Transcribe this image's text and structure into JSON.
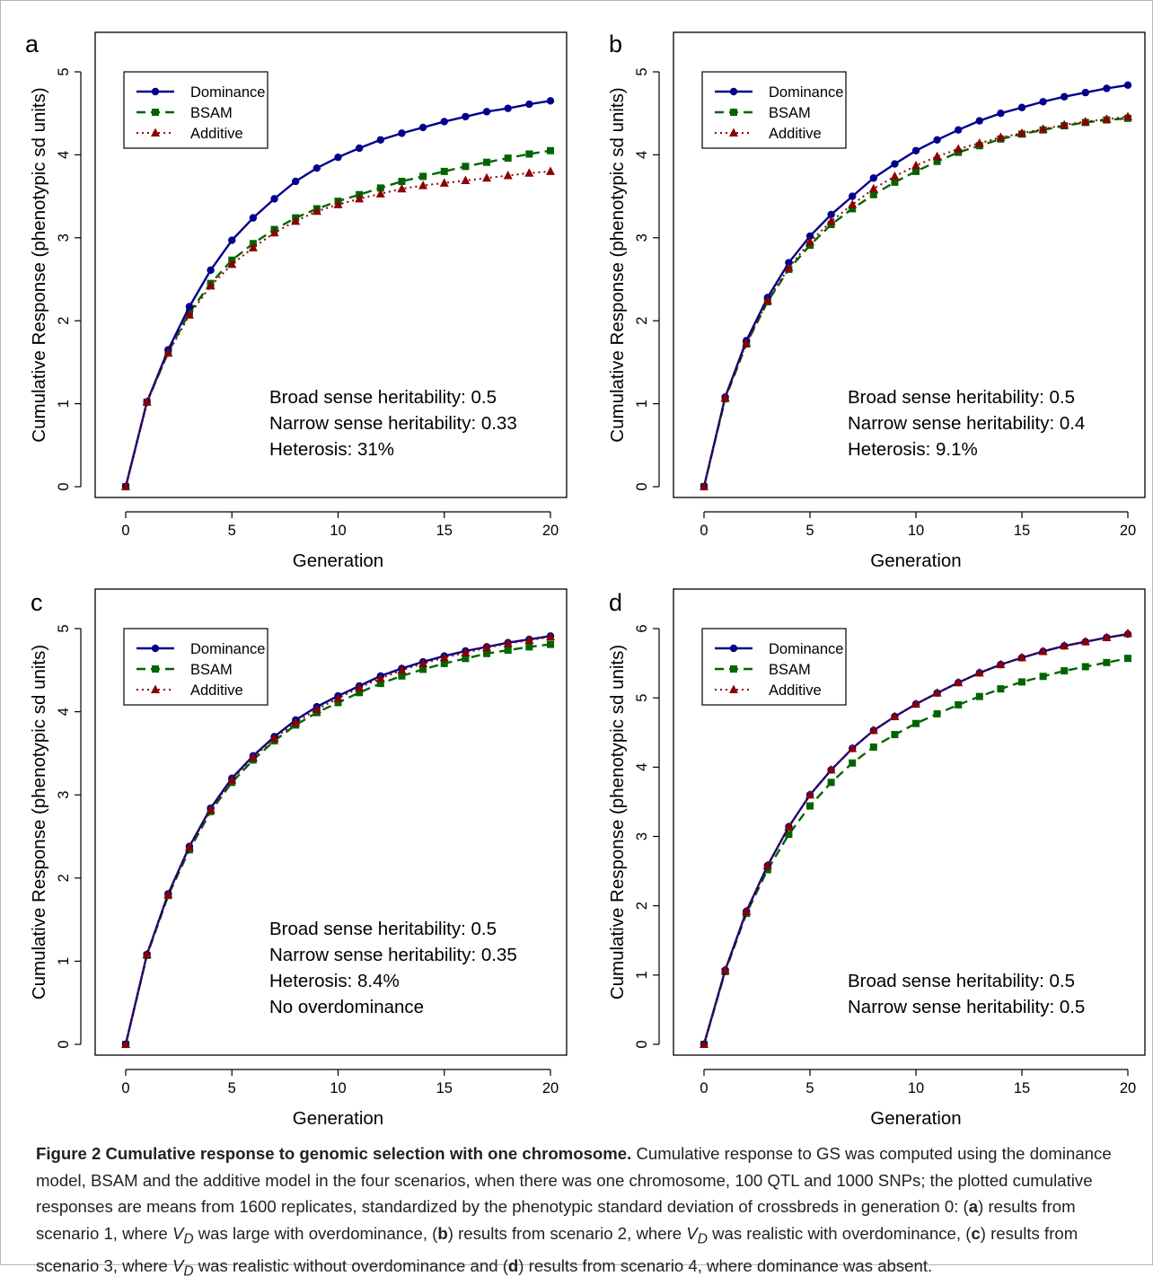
{
  "shared": {
    "series_names": [
      "Dominance",
      "BSAM",
      "Additive"
    ],
    "colors": {
      "Dominance": "#00008b",
      "BSAM": "#006400",
      "Additive": "#8b0000"
    },
    "xlabel": "Generation",
    "ylabel": "Cumulative Response (phenotypic sd units)"
  },
  "chart_data": [
    {
      "panel": "a",
      "type": "line",
      "xlabel": "Generation",
      "ylabel": "Cumulative Response (phenotypic sd units)",
      "xlim": [
        0,
        20
      ],
      "ylim": [
        0,
        5
      ],
      "xticks": [
        0,
        5,
        10,
        15,
        20
      ],
      "yticks": [
        0,
        1,
        2,
        3,
        4,
        5
      ],
      "legend": "top-left",
      "x": [
        0,
        1,
        2,
        3,
        4,
        5,
        6,
        7,
        8,
        9,
        10,
        11,
        12,
        13,
        14,
        15,
        16,
        17,
        18,
        19,
        20
      ],
      "series": [
        {
          "name": "Dominance",
          "values": [
            0,
            1.02,
            1.65,
            2.17,
            2.61,
            2.97,
            3.24,
            3.47,
            3.68,
            3.84,
            3.97,
            4.08,
            4.18,
            4.26,
            4.33,
            4.4,
            4.46,
            4.52,
            4.56,
            4.61,
            4.65
          ]
        },
        {
          "name": "BSAM",
          "values": [
            0,
            1.02,
            1.62,
            2.1,
            2.45,
            2.73,
            2.93,
            3.1,
            3.24,
            3.35,
            3.44,
            3.52,
            3.6,
            3.68,
            3.74,
            3.8,
            3.86,
            3.91,
            3.96,
            4.01,
            4.05
          ]
        },
        {
          "name": "Additive",
          "values": [
            0,
            1.02,
            1.61,
            2.07,
            2.42,
            2.68,
            2.88,
            3.06,
            3.2,
            3.32,
            3.4,
            3.47,
            3.53,
            3.59,
            3.63,
            3.66,
            3.69,
            3.72,
            3.75,
            3.78,
            3.8
          ]
        }
      ],
      "annotations": [
        "Broad sense heritability: 0.5",
        "Narrow sense heritability: 0.33",
        "Heterosis: 31%"
      ]
    },
    {
      "panel": "b",
      "type": "line",
      "xlabel": "Generation",
      "ylabel": "Cumulative Response (phenotypic sd units)",
      "xlim": [
        0,
        20
      ],
      "ylim": [
        0,
        5
      ],
      "xticks": [
        0,
        5,
        10,
        15,
        20
      ],
      "yticks": [
        0,
        1,
        2,
        3,
        4,
        5
      ],
      "legend": "top-left",
      "x": [
        0,
        1,
        2,
        3,
        4,
        5,
        6,
        7,
        8,
        9,
        10,
        11,
        12,
        13,
        14,
        15,
        16,
        17,
        18,
        19,
        20
      ],
      "series": [
        {
          "name": "Dominance",
          "values": [
            0,
            1.08,
            1.76,
            2.28,
            2.7,
            3.02,
            3.28,
            3.5,
            3.72,
            3.89,
            4.05,
            4.18,
            4.3,
            4.41,
            4.5,
            4.57,
            4.64,
            4.7,
            4.75,
            4.8,
            4.84
          ]
        },
        {
          "name": "BSAM",
          "values": [
            0,
            1.06,
            1.72,
            2.23,
            2.62,
            2.91,
            3.16,
            3.35,
            3.52,
            3.67,
            3.8,
            3.92,
            4.03,
            4.11,
            4.19,
            4.25,
            4.3,
            4.35,
            4.39,
            4.42,
            4.44
          ]
        },
        {
          "name": "Additive",
          "values": [
            0,
            1.07,
            1.73,
            2.24,
            2.64,
            2.95,
            3.2,
            3.4,
            3.59,
            3.74,
            3.87,
            3.98,
            4.07,
            4.14,
            4.21,
            4.26,
            4.31,
            4.36,
            4.4,
            4.43,
            4.46
          ]
        }
      ],
      "annotations": [
        "Broad sense heritability: 0.5",
        "Narrow sense heritability: 0.4",
        "Heterosis: 9.1%"
      ]
    },
    {
      "panel": "c",
      "type": "line",
      "xlabel": "Generation",
      "ylabel": "Cumulative Response (phenotypic sd units)",
      "xlim": [
        0,
        20
      ],
      "ylim": [
        0,
        5
      ],
      "xticks": [
        0,
        5,
        10,
        15,
        20
      ],
      "yticks": [
        0,
        1,
        2,
        3,
        4,
        5
      ],
      "legend": "top-left",
      "x": [
        0,
        1,
        2,
        3,
        4,
        5,
        6,
        7,
        8,
        9,
        10,
        11,
        12,
        13,
        14,
        15,
        16,
        17,
        18,
        19,
        20
      ],
      "series": [
        {
          "name": "Dominance",
          "values": [
            0,
            1.08,
            1.81,
            2.38,
            2.84,
            3.2,
            3.47,
            3.7,
            3.9,
            4.06,
            4.19,
            4.31,
            4.43,
            4.52,
            4.6,
            4.67,
            4.73,
            4.78,
            4.83,
            4.87,
            4.91
          ]
        },
        {
          "name": "BSAM",
          "values": [
            0,
            1.07,
            1.79,
            2.34,
            2.8,
            3.15,
            3.42,
            3.65,
            3.84,
            3.99,
            4.11,
            4.23,
            4.34,
            4.43,
            4.51,
            4.58,
            4.64,
            4.7,
            4.74,
            4.78,
            4.81
          ]
        },
        {
          "name": "Additive",
          "values": [
            0,
            1.08,
            1.8,
            2.37,
            2.82,
            3.18,
            3.45,
            3.68,
            3.87,
            4.03,
            4.16,
            4.29,
            4.4,
            4.5,
            4.58,
            4.65,
            4.71,
            4.77,
            4.82,
            4.86,
            4.9
          ]
        }
      ],
      "annotations": [
        "Broad sense heritability: 0.5",
        "Narrow sense heritability: 0.35",
        "Heterosis: 8.4%",
        "No overdominance"
      ]
    },
    {
      "panel": "d",
      "type": "line",
      "xlabel": "Generation",
      "ylabel": "Cumulative Response (phenotypic sd units)",
      "xlim": [
        0,
        20
      ],
      "ylim": [
        0,
        6
      ],
      "xticks": [
        0,
        5,
        10,
        15,
        20
      ],
      "yticks": [
        0,
        1,
        2,
        3,
        4,
        5,
        6
      ],
      "legend": "top-left",
      "x": [
        0,
        1,
        2,
        3,
        4,
        5,
        6,
        7,
        8,
        9,
        10,
        11,
        12,
        13,
        14,
        15,
        16,
        17,
        18,
        19,
        20
      ],
      "series": [
        {
          "name": "Dominance",
          "values": [
            0,
            1.07,
            1.92,
            2.58,
            3.14,
            3.6,
            3.96,
            4.27,
            4.53,
            4.73,
            4.91,
            5.07,
            5.22,
            5.36,
            5.48,
            5.58,
            5.67,
            5.75,
            5.81,
            5.87,
            5.92
          ]
        },
        {
          "name": "BSAM",
          "values": [
            0,
            1.05,
            1.89,
            2.52,
            3.03,
            3.44,
            3.78,
            4.06,
            4.29,
            4.47,
            4.63,
            4.77,
            4.9,
            5.02,
            5.13,
            5.23,
            5.31,
            5.39,
            5.45,
            5.51,
            5.57
          ]
        },
        {
          "name": "Additive",
          "values": [
            0,
            1.07,
            1.92,
            2.58,
            3.14,
            3.6,
            3.96,
            4.27,
            4.53,
            4.73,
            4.91,
            5.07,
            5.22,
            5.36,
            5.48,
            5.58,
            5.67,
            5.75,
            5.81,
            5.87,
            5.93
          ]
        }
      ],
      "annotations": [
        "Broad sense heritability: 0.5",
        "Narrow sense heritability: 0.5"
      ]
    }
  ],
  "caption": {
    "title": "Figure 2 Cumulative response to genomic selection with one chromosome.",
    "t1": " Cumulative response to GS was computed using the dominance model, BSAM and the additive model in the four scenarios, when there was one chromosome, 100 QTL and 1000 SNPs; the plotted cumulative responses are means from 1600 replicates, standardized by the phenotypic standard deviation of crossbreds in generation 0: (",
    "a": "a",
    "t2": ") results from scenario 1, where ",
    "v": "V",
    "d": "D",
    "t3": " was large with overdominance, (",
    "b": "b",
    "t4": ") results from scenario 2, where ",
    "t5": " was realistic with overdominance, (",
    "c": "c",
    "t6": ") results from scenario 3, where ",
    "t7": " was realistic without overdominance and (",
    "dd": "d",
    "t8": ") results from scenario 4, where dominance was absent."
  }
}
